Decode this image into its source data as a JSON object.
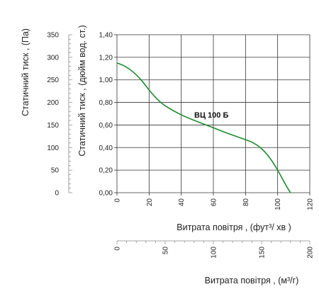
{
  "chart_data": {
    "type": "line",
    "series": [
      {
        "name": "ВЦ 100 Б",
        "color": "#1e8a2e",
        "x": [
          0,
          5,
          10,
          15,
          20,
          25,
          30,
          40,
          50,
          60,
          70,
          80,
          85,
          90,
          95,
          100,
          105,
          108
        ],
        "y": [
          1.15,
          1.12,
          1.07,
          1.0,
          0.91,
          0.83,
          0.77,
          0.69,
          0.63,
          0.575,
          0.52,
          0.47,
          0.44,
          0.39,
          0.31,
          0.2,
          0.07,
          0.0
        ]
      }
    ],
    "xlim": [
      0,
      120
    ],
    "ylim": [
      0,
      1.4
    ],
    "grid": true,
    "x_ticks": [
      "0",
      "20",
      "40",
      "60",
      "80",
      "100",
      "120"
    ],
    "y_ticks": [
      "0,00",
      "0,20",
      "0,40",
      "0,60",
      "0,80",
      "1,00",
      "1,20",
      "1,40"
    ],
    "x_ticks_m3h": [
      "0",
      "50",
      "100",
      "150",
      "200"
    ],
    "x_m3h_lim": [
      0,
      200
    ],
    "y_ticks_pa": [
      "0",
      "50",
      "100",
      "150",
      "200",
      "250",
      "300",
      "350"
    ],
    "y_pa_lim": [
      0,
      350
    ],
    "ylabel_inwg": "Статичний тиск , (дюйм вод. ст.)",
    "ylabel_pa": "Статичний тиск , (Па)",
    "xlabel_cfm": "Витрата повітря , (фут³/ хв )",
    "xlabel_m3h": "Витрата повітря , (м³/г)",
    "series_label": "ВЦ 100 Б"
  }
}
